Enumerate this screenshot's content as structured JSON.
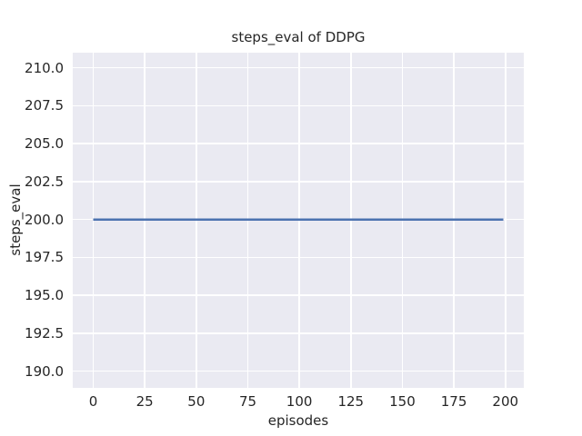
{
  "chart_data": {
    "type": "line",
    "title": "steps_eval of DDPG",
    "xlabel": "episodes",
    "ylabel": "steps_eval",
    "x_ticks": [
      0,
      25,
      50,
      75,
      100,
      125,
      150,
      175,
      200
    ],
    "x_tick_labels": [
      "0",
      "25",
      "50",
      "75",
      "100",
      "125",
      "150",
      "175",
      "200"
    ],
    "y_ticks": [
      190,
      192.5,
      195,
      197.5,
      200,
      202.5,
      205,
      207.5,
      210
    ],
    "y_tick_labels": [
      "190.0",
      "192.5",
      "195.0",
      "197.5",
      "200.0",
      "202.5",
      "205.0",
      "207.5",
      "210.0"
    ],
    "xlim": [
      -9.95,
      208.95
    ],
    "ylim": [
      188.9,
      211.0
    ],
    "grid": true,
    "legend_position": "none",
    "series": [
      {
        "name": "steps_eval",
        "x": [
          0,
          199
        ],
        "y": [
          200,
          200
        ],
        "color": "#4c72b0",
        "linewidth": 2.5
      }
    ]
  },
  "colors": {
    "figure_background": "#ffffff",
    "plot_background": "#eaeaf2",
    "gridline": "#ffffff",
    "text": "#262626"
  }
}
